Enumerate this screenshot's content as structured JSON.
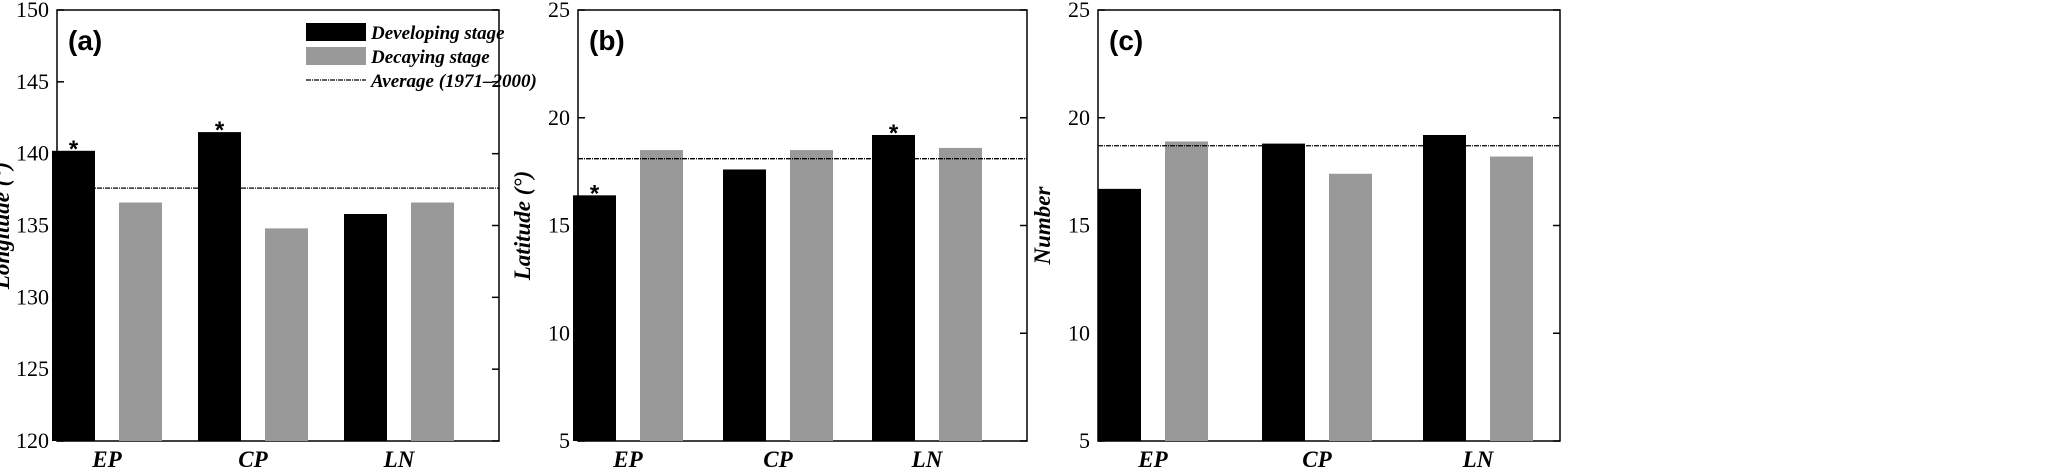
{
  "chart_data": [
    {
      "type": "bar",
      "panel_label": "(a)",
      "ylabel": "Longitude (°)",
      "ylim": [
        120,
        150
      ],
      "yticks": [
        120,
        125,
        130,
        135,
        140,
        145,
        150
      ],
      "categories": [
        "EP",
        "CP",
        "LN"
      ],
      "series": [
        {
          "name": "Developing stage",
          "color": "#000000",
          "values": [
            140.2,
            141.5,
            135.8
          ]
        },
        {
          "name": "Decaying stage",
          "color": "#999999",
          "values": [
            136.6,
            134.8,
            136.6
          ]
        }
      ],
      "average": {
        "name": "Average (1971–2000)",
        "value": 137.6
      },
      "significance": [
        {
          "series": 0,
          "category": 0,
          "label": "*"
        },
        {
          "series": 0,
          "category": 1,
          "label": "*"
        }
      ],
      "legend": {
        "position": "top-right"
      }
    },
    {
      "type": "bar",
      "panel_label": "(b)",
      "ylabel": "Latitude (°)",
      "ylim": [
        5,
        25
      ],
      "yticks": [
        5,
        10,
        15,
        20,
        25
      ],
      "categories": [
        "EP",
        "CP",
        "LN"
      ],
      "series": [
        {
          "color": "#000000",
          "values": [
            16.4,
            17.6,
            19.2
          ]
        },
        {
          "color": "#999999",
          "values": [
            18.5,
            18.5,
            18.6
          ]
        }
      ],
      "average": {
        "value": 18.1
      },
      "significance": [
        {
          "series": 0,
          "category": 0,
          "label": "*"
        },
        {
          "series": 0,
          "category": 2,
          "label": "*"
        }
      ]
    },
    {
      "type": "bar",
      "panel_label": "(c)",
      "ylabel": "Number",
      "ylim": [
        5,
        25
      ],
      "yticks": [
        5,
        10,
        15,
        20,
        25
      ],
      "categories": [
        "EP",
        "CP",
        "LN"
      ],
      "series": [
        {
          "color": "#000000",
          "values": [
            16.7,
            18.8,
            19.2
          ]
        },
        {
          "color": "#999999",
          "values": [
            18.9,
            17.4,
            18.2
          ]
        }
      ],
      "average": {
        "value": 18.7
      },
      "significance": []
    }
  ]
}
